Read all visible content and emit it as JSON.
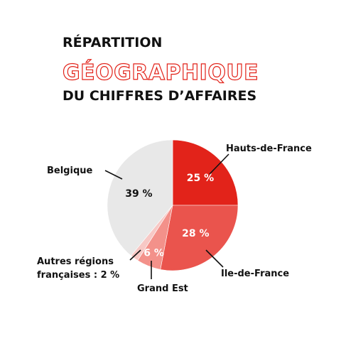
{
  "title": {
    "line1": "RÉPARTITION",
    "line2": "GÉOGRAPHIQUE",
    "line3": "DU CHIFFRES D’AFFAIRES"
  },
  "colors": {
    "accent": "#e2231a",
    "title_text": "#111111"
  },
  "chart_data": {
    "type": "pie",
    "unit": "%",
    "slices": [
      {
        "key": "hdf",
        "name": "Hauts-de-France",
        "value": 25,
        "inner_label": "25 %",
        "callout": "Hauts-de-France",
        "color": "#e2231a",
        "text_color": "#ffffff"
      },
      {
        "key": "idf",
        "name": "Ile-de-France",
        "value": 28,
        "inner_label": "28 %",
        "callout": "Ile-de-France",
        "color": "#ea544d",
        "text_color": "#ffffff"
      },
      {
        "key": "ge",
        "name": "Grand Est",
        "value": 6,
        "inner_label": "6 %",
        "callout": "Grand Est",
        "color": "#f3918a",
        "text_color": "#ffffff"
      },
      {
        "key": "arf",
        "name": "Autres régions françaises",
        "value": 2,
        "inner_label": "",
        "callout_line1": "Autres régions",
        "callout_line2": "françaises : 2 %",
        "color": "#f7c8c5",
        "text_color": "#ffffff"
      },
      {
        "key": "be",
        "name": "Belgique",
        "value": 39,
        "inner_label": "39 %",
        "callout": "Belgique",
        "color": "#e8e8e8",
        "text_color": "#111111"
      }
    ]
  }
}
